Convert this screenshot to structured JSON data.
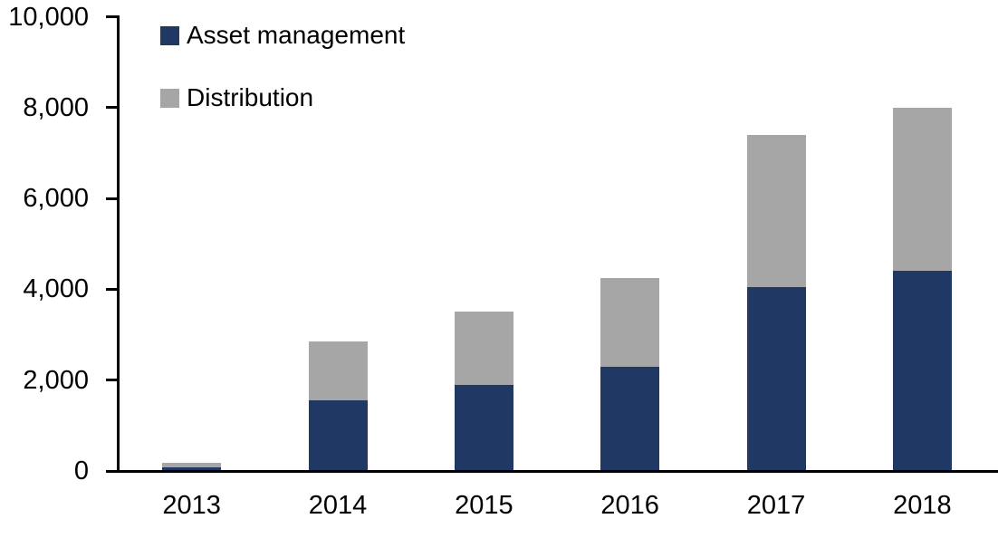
{
  "chart_data": {
    "type": "bar",
    "stacked": true,
    "title": "",
    "xlabel": "",
    "ylabel": "",
    "categories": [
      "2013",
      "2014",
      "2015",
      "2016",
      "2017",
      "2018"
    ],
    "series": [
      {
        "name": "Asset management",
        "color": "#1F3864",
        "values": [
          80,
          1550,
          1900,
          2300,
          4050,
          4400
        ]
      },
      {
        "name": "Distribution",
        "color": "#A6A6A6",
        "values": [
          100,
          1300,
          1600,
          1950,
          3350,
          3600
        ]
      }
    ],
    "totals": [
      180,
      2850,
      3500,
      4250,
      7400,
      8000
    ],
    "ylim": [
      0,
      10000
    ],
    "yticks": [
      {
        "value": 0,
        "label": "0"
      },
      {
        "value": 2000,
        "label": "2,000"
      },
      {
        "value": 4000,
        "label": "4,000"
      },
      {
        "value": 6000,
        "label": "6,000"
      },
      {
        "value": 8000,
        "label": "8,000"
      },
      {
        "value": 10000,
        "label": "10,000"
      }
    ],
    "grid": false,
    "legend_position": "top-left",
    "axis_color": "#000000",
    "background_color": "#FFFFFF"
  }
}
